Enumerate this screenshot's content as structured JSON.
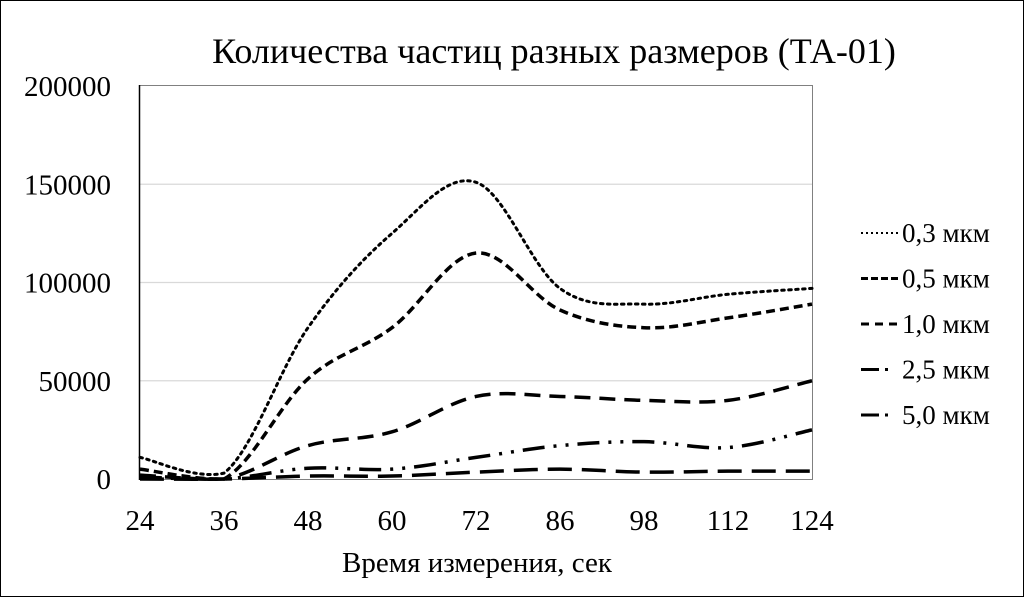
{
  "chart_data": {
    "type": "line",
    "title": "Количества частиц разных размеров (ТА-01)",
    "xlabel": "Время измерения, сек",
    "ylabel": "",
    "categories": [
      "24",
      "36",
      "48",
      "60",
      "72",
      "86",
      "98",
      "112",
      "124"
    ],
    "ylim": [
      0,
      200000
    ],
    "yticks": [
      "0",
      "50000",
      "100000",
      "150000",
      "200000"
    ],
    "grid": true,
    "legend_position": "right",
    "smoothed": true,
    "series": [
      {
        "name": "0,3 мкм",
        "style": "dotted",
        "values": [
          11000,
          3000,
          77000,
          125000,
          151000,
          97000,
          89000,
          94000,
          97000
        ]
      },
      {
        "name": "0,5 мкм",
        "style": "short-dash",
        "values": [
          5000,
          0,
          51000,
          77000,
          115000,
          86000,
          77000,
          82000,
          89000
        ]
      },
      {
        "name": "1,0 мкм",
        "style": "dash",
        "values": [
          2000,
          0,
          17000,
          24000,
          42000,
          42000,
          40000,
          40000,
          50000
        ]
      },
      {
        "name": "2,5 мкм",
        "style": "long-dash-dot",
        "values": [
          1000,
          0,
          5500,
          5000,
          11000,
          17000,
          19000,
          16000,
          25000
        ]
      },
      {
        "name": "5,0 мкм",
        "style": "long-dash",
        "values": [
          0,
          0,
          1500,
          1500,
          3500,
          5000,
          3500,
          4000,
          4000
        ]
      }
    ]
  }
}
